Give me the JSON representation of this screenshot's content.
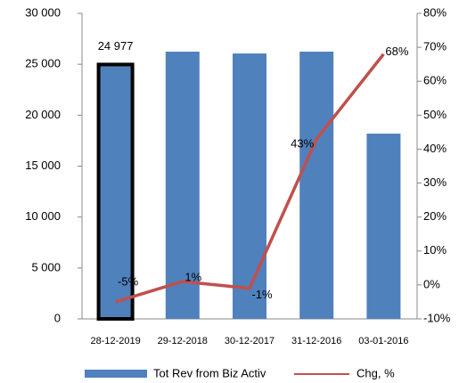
{
  "chart_data": {
    "type": "bar_line",
    "categories": [
      "28-12-2019",
      "29-12-2018",
      "30-12-2017",
      "31-12-2016",
      "03-01-2016"
    ],
    "series": [
      {
        "name": "Tot Rev from Biz Activ",
        "color": "#4f81bd",
        "values": [
          24977,
          26240,
          26060,
          26240,
          18190
        ],
        "value_labels": [
          "24 977",
          null,
          null,
          null,
          null
        ],
        "highlight_index": 0,
        "highlight_color": "#000000"
      },
      {
        "name": "Chg, %",
        "color": "#c0504d",
        "axis": "y2",
        "values": [
          -5,
          1,
          -1,
          43,
          68
        ],
        "value_labels": [
          "-5%",
          "1%",
          "-1%",
          "43%",
          "68%"
        ]
      }
    ],
    "ylim": [
      0,
      30000
    ],
    "yticks": [
      {
        "value": 0,
        "label": "0"
      },
      {
        "value": 5000,
        "label": "5 000"
      },
      {
        "value": 10000,
        "label": "10 000"
      },
      {
        "value": 15000,
        "label": "15 000"
      },
      {
        "value": 20000,
        "label": "20 000"
      },
      {
        "value": 25000,
        "label": "25 000"
      },
      {
        "value": 30000,
        "label": "30 000"
      }
    ],
    "y2lim": [
      -10,
      80
    ],
    "y2ticks": [
      {
        "value": -10,
        "label": "-10%"
      },
      {
        "value": 0,
        "label": "0%"
      },
      {
        "value": 10,
        "label": "10%"
      },
      {
        "value": 20,
        "label": "20%"
      },
      {
        "value": 30,
        "label": "30%"
      },
      {
        "value": 40,
        "label": "40%"
      },
      {
        "value": 50,
        "label": "50%"
      },
      {
        "value": 60,
        "label": "60%"
      },
      {
        "value": 70,
        "label": "70%"
      },
      {
        "value": 80,
        "label": "80%"
      }
    ],
    "legend": "bottom"
  }
}
